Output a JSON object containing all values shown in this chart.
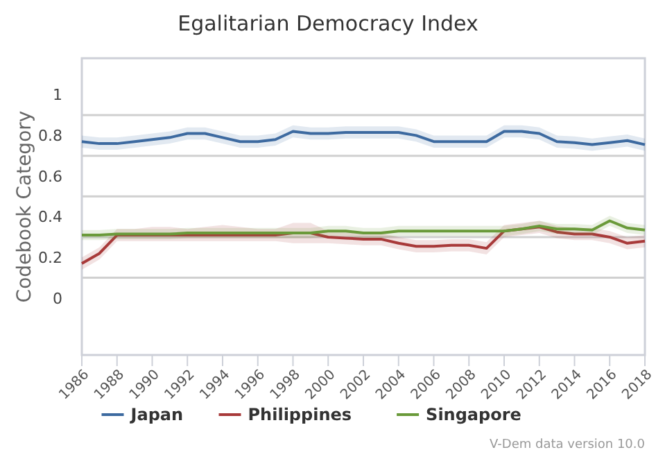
{
  "chart_data": {
    "type": "line",
    "title": "Egalitarian Democracy Index",
    "ylabel": "Codebook Category",
    "x": [
      1986,
      1987,
      1988,
      1989,
      1990,
      1991,
      1992,
      1993,
      1994,
      1995,
      1996,
      1997,
      1998,
      1999,
      2000,
      2001,
      2002,
      2003,
      2004,
      2005,
      2006,
      2007,
      2008,
      2009,
      2010,
      2011,
      2012,
      2013,
      2014,
      2015,
      2016,
      2017,
      2018
    ],
    "series": [
      {
        "name": "Japan",
        "color": "#3d6aa0",
        "values": [
          0.77,
          0.76,
          0.76,
          0.77,
          0.78,
          0.79,
          0.81,
          0.81,
          0.79,
          0.77,
          0.77,
          0.78,
          0.82,
          0.81,
          0.81,
          0.815,
          0.815,
          0.815,
          0.815,
          0.8,
          0.77,
          0.77,
          0.77,
          0.77,
          0.82,
          0.82,
          0.81,
          0.77,
          0.765,
          0.755,
          0.765,
          0.775,
          0.755
        ],
        "lower": [
          0.74,
          0.73,
          0.73,
          0.74,
          0.75,
          0.76,
          0.78,
          0.78,
          0.76,
          0.74,
          0.74,
          0.75,
          0.79,
          0.78,
          0.78,
          0.785,
          0.785,
          0.785,
          0.785,
          0.77,
          0.74,
          0.74,
          0.74,
          0.74,
          0.79,
          0.79,
          0.78,
          0.74,
          0.735,
          0.725,
          0.735,
          0.745,
          0.725
        ],
        "upper": [
          0.8,
          0.79,
          0.79,
          0.8,
          0.81,
          0.82,
          0.84,
          0.84,
          0.82,
          0.8,
          0.8,
          0.81,
          0.85,
          0.84,
          0.84,
          0.845,
          0.845,
          0.845,
          0.845,
          0.83,
          0.8,
          0.8,
          0.8,
          0.8,
          0.85,
          0.85,
          0.84,
          0.8,
          0.795,
          0.785,
          0.795,
          0.805,
          0.785
        ]
      },
      {
        "name": "Philippines",
        "color": "#a83a3a",
        "values": [
          0.17,
          0.22,
          0.31,
          0.31,
          0.31,
          0.31,
          0.31,
          0.31,
          0.31,
          0.31,
          0.31,
          0.31,
          0.32,
          0.32,
          0.3,
          0.295,
          0.29,
          0.29,
          0.27,
          0.255,
          0.255,
          0.26,
          0.26,
          0.245,
          0.33,
          0.34,
          0.35,
          0.325,
          0.315,
          0.315,
          0.3,
          0.27,
          0.28
        ],
        "lower": [
          0.14,
          0.19,
          0.28,
          0.28,
          0.28,
          0.28,
          0.28,
          0.28,
          0.28,
          0.28,
          0.28,
          0.28,
          0.27,
          0.27,
          0.27,
          0.265,
          0.26,
          0.26,
          0.24,
          0.225,
          0.225,
          0.23,
          0.23,
          0.215,
          0.3,
          0.31,
          0.32,
          0.295,
          0.285,
          0.285,
          0.27,
          0.24,
          0.25
        ],
        "upper": [
          0.2,
          0.25,
          0.34,
          0.34,
          0.35,
          0.35,
          0.34,
          0.35,
          0.36,
          0.35,
          0.34,
          0.34,
          0.37,
          0.37,
          0.33,
          0.325,
          0.32,
          0.32,
          0.3,
          0.285,
          0.285,
          0.29,
          0.29,
          0.275,
          0.36,
          0.37,
          0.38,
          0.355,
          0.345,
          0.345,
          0.33,
          0.3,
          0.31
        ]
      },
      {
        "name": "Singapore",
        "color": "#6a9a3a",
        "values": [
          0.31,
          0.31,
          0.315,
          0.315,
          0.315,
          0.315,
          0.32,
          0.32,
          0.32,
          0.32,
          0.32,
          0.32,
          0.32,
          0.32,
          0.33,
          0.33,
          0.32,
          0.32,
          0.33,
          0.33,
          0.33,
          0.33,
          0.33,
          0.33,
          0.33,
          0.34,
          0.355,
          0.34,
          0.34,
          0.335,
          0.38,
          0.345,
          0.335
        ],
        "lower": [
          0.285,
          0.285,
          0.29,
          0.29,
          0.29,
          0.29,
          0.295,
          0.295,
          0.295,
          0.295,
          0.295,
          0.295,
          0.295,
          0.295,
          0.305,
          0.305,
          0.295,
          0.295,
          0.305,
          0.305,
          0.305,
          0.305,
          0.305,
          0.305,
          0.305,
          0.315,
          0.33,
          0.315,
          0.315,
          0.31,
          0.355,
          0.32,
          0.31
        ],
        "upper": [
          0.335,
          0.335,
          0.34,
          0.34,
          0.34,
          0.34,
          0.345,
          0.345,
          0.345,
          0.345,
          0.345,
          0.345,
          0.345,
          0.345,
          0.355,
          0.355,
          0.345,
          0.345,
          0.355,
          0.355,
          0.355,
          0.355,
          0.355,
          0.355,
          0.355,
          0.365,
          0.38,
          0.365,
          0.365,
          0.36,
          0.405,
          0.37,
          0.36
        ]
      }
    ],
    "xlim": [
      1986,
      2018
    ],
    "xticks": [
      1986,
      1988,
      1990,
      1992,
      1994,
      1996,
      1998,
      2000,
      2002,
      2004,
      2006,
      2008,
      2010,
      2012,
      2014,
      2016,
      2018
    ],
    "ylim": [
      -0.28,
      1.18
    ],
    "yticks": [
      {
        "value": 1,
        "label": "1"
      },
      {
        "value": 0.9,
        "label": null
      },
      {
        "value": 0.8,
        "label": "0.8"
      },
      {
        "value": 0.7,
        "label": null
      },
      {
        "value": 0.6,
        "label": "0.6"
      },
      {
        "value": 0.5,
        "label": null
      },
      {
        "value": 0.4,
        "label": "0.4"
      },
      {
        "value": 0.3,
        "label": null
      },
      {
        "value": 0.2,
        "label": "0.2"
      },
      {
        "value": 0.1,
        "label": null
      },
      {
        "value": 0,
        "label": "0"
      }
    ],
    "grid": "y",
    "legend": "bottom",
    "marker": "none",
    "line_style": "solid",
    "annotations": [
      "V-Dem data version 10.0"
    ]
  }
}
